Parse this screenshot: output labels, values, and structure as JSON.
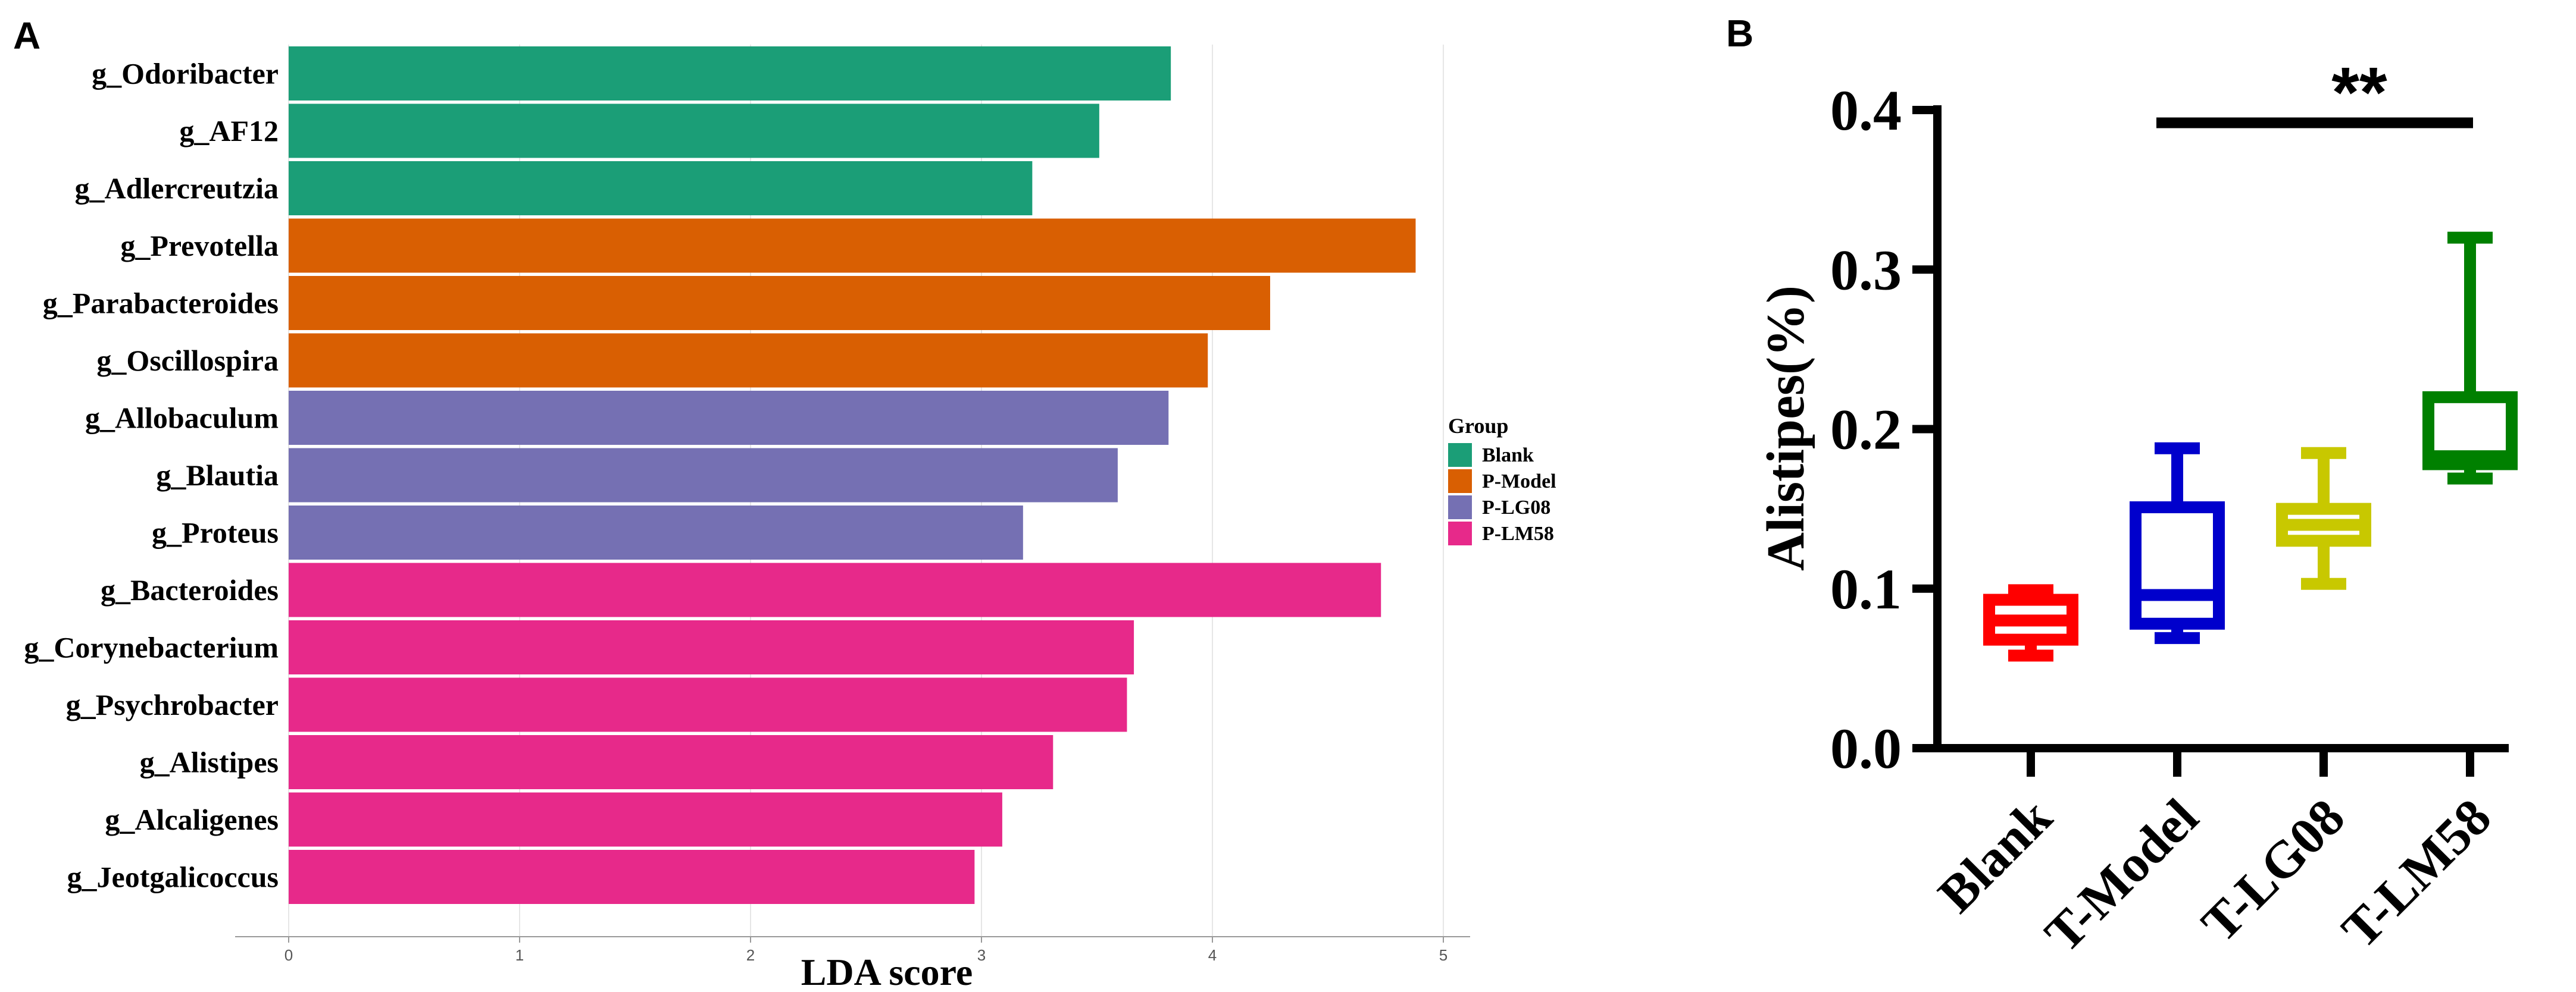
{
  "panels": {
    "a_label": "A",
    "b_label": "B"
  },
  "chart_data": [
    {
      "type": "bar",
      "orientation": "horizontal",
      "panel": "A",
      "xlabel": "LDA score",
      "xlim": [
        0,
        5
      ],
      "xticks": [
        "0",
        "1",
        "2",
        "3",
        "4",
        "5"
      ],
      "legend": {
        "title": "Group",
        "placement": "right",
        "entries": [
          {
            "name": "Blank",
            "color": "#1b9e77"
          },
          {
            "name": "P-Model",
            "color": "#d95f02"
          },
          {
            "name": "P-LG08",
            "color": "#7570b3"
          },
          {
            "name": "P-LM58",
            "color": "#e7298a"
          }
        ]
      },
      "bars": [
        {
          "label": "g_Odoribacter",
          "value": 3.82,
          "group": "Blank"
        },
        {
          "label": "g_AF12",
          "value": 3.51,
          "group": "Blank"
        },
        {
          "label": "g_Adlercreutzia",
          "value": 3.22,
          "group": "Blank"
        },
        {
          "label": "g_Prevotella",
          "value": 4.88,
          "group": "P-Model"
        },
        {
          "label": "g_Parabacteroides",
          "value": 4.25,
          "group": "P-Model"
        },
        {
          "label": "g_Oscillospira",
          "value": 3.98,
          "group": "P-Model"
        },
        {
          "label": "g_Allobaculum",
          "value": 3.81,
          "group": "P-LG08"
        },
        {
          "label": "g_Blautia",
          "value": 3.59,
          "group": "P-LG08"
        },
        {
          "label": "g_Proteus",
          "value": 3.18,
          "group": "P-LG08"
        },
        {
          "label": "g_Bacteroides",
          "value": 4.73,
          "group": "P-LM58"
        },
        {
          "label": "g_Corynebacterium",
          "value": 3.66,
          "group": "P-LM58"
        },
        {
          "label": "g_Psychrobacter",
          "value": 3.63,
          "group": "P-LM58"
        },
        {
          "label": "g_Alistipes",
          "value": 3.31,
          "group": "P-LM58"
        },
        {
          "label": "g_Alcaligenes",
          "value": 3.09,
          "group": "P-LM58"
        },
        {
          "label": "g_Jeotgalicoccus",
          "value": 2.97,
          "group": "P-LM58"
        }
      ]
    },
    {
      "type": "box",
      "panel": "B",
      "ylabel": "Alistipes(%)",
      "ylim": [
        0,
        0.4
      ],
      "yticks": [
        "0.0",
        "0.1",
        "0.2",
        "0.3",
        "0.4"
      ],
      "significance": {
        "text": "**",
        "from": "T-Model",
        "to": "T-LM58",
        "y": 0.392
      },
      "boxes": [
        {
          "category": "Blank",
          "color": "#ff0000",
          "min": 0.058,
          "q1": 0.068,
          "median": 0.08,
          "q3": 0.093,
          "max": 0.099
        },
        {
          "category": "T-Model",
          "color": "#0000cc",
          "min": 0.069,
          "q1": 0.078,
          "median": 0.096,
          "q3": 0.151,
          "max": 0.188
        },
        {
          "category": "T-LG08",
          "color": "#c8c800",
          "min": 0.103,
          "q1": 0.13,
          "median": 0.14,
          "q3": 0.15,
          "max": 0.185
        },
        {
          "category": "T-LM58",
          "color": "#008000",
          "min": 0.169,
          "q1": 0.178,
          "median": 0.183,
          "q3": 0.22,
          "max": 0.32
        }
      ]
    }
  ]
}
